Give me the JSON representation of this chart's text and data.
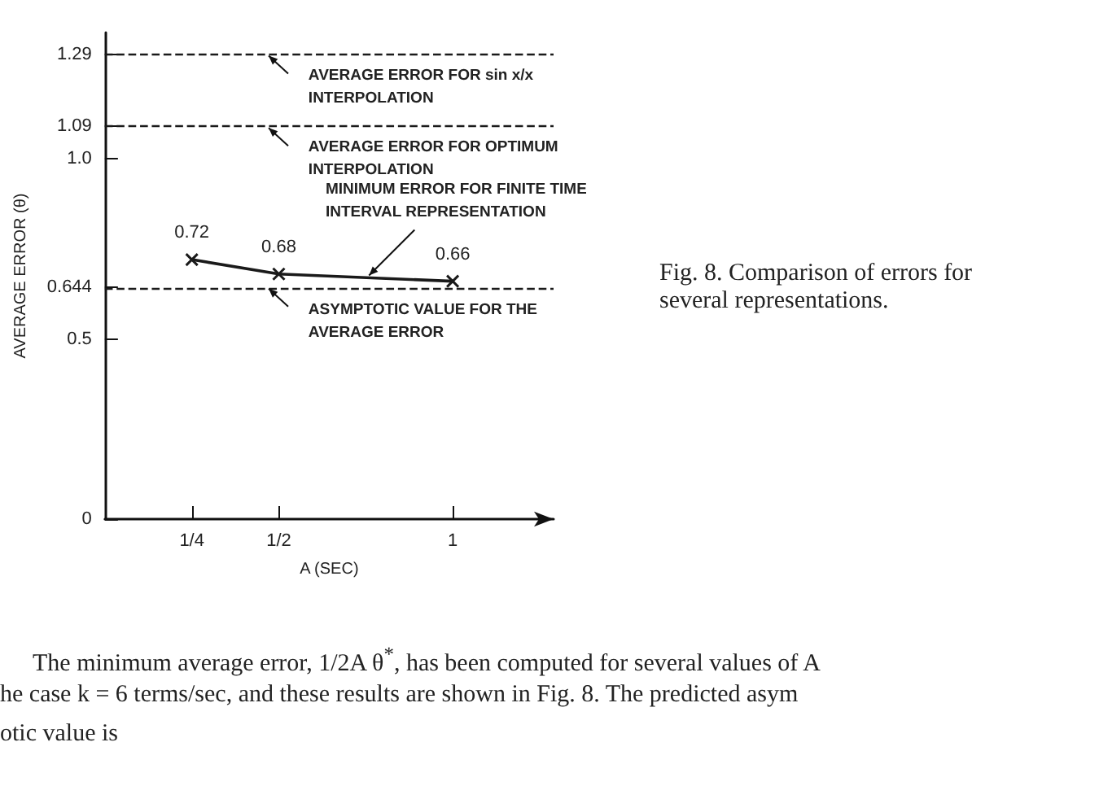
{
  "chart_data": {
    "type": "line",
    "xlabel": "A (SEC)",
    "ylabel": "AVERAGE ERROR (θ)",
    "x": [
      0.25,
      0.5,
      1
    ],
    "series": [
      {
        "color": "#1a1a1a",
        "values": [
          0.72,
          0.68,
          0.66
        ]
      }
    ],
    "data_labels": true,
    "marker": "cross",
    "line_style": "solid",
    "grid": false,
    "xlim": [
      0,
      1.29
    ],
    "xticks": [
      {
        "value": 0.25,
        "label": "1/4"
      },
      {
        "value": 0.5,
        "label": "1/2"
      },
      1
    ],
    "ylim": [
      0,
      1.35
    ],
    "yticks": [
      0,
      0.5,
      0.644,
      {
        "value": 1,
        "label": "1.0"
      },
      1.09,
      1.29
    ],
    "ref_lines": [
      {
        "axis": "y",
        "value": 1.29,
        "label": "AVERAGE ERROR FOR sin x/x INTERPOLATION",
        "line_style": "dashed",
        "color": "#1a1a1a"
      },
      {
        "axis": "y",
        "value": 1.09,
        "label": "AVERAGE ERROR FOR OPTIMUM INTERPOLATION",
        "line_style": "dashed",
        "color": "#1a1a1a"
      },
      {
        "axis": "y",
        "value": 0.644,
        "label": "ASYMPTOTIC VALUE FOR THE AVERAGE ERROR",
        "line_style": "dashed",
        "color": "#1a1a1a"
      }
    ],
    "annotations": [
      {
        "text": "MINIMUM ERROR FOR FINITE TIME INTERVAL REPRESENTATION",
        "x": 0.75,
        "y": 0.667
      },
      "Fig. 8. Comparison of errors for several representations.",
      "The minimum average error, 1/2A θ$^{*}$, has been computed for several values of A",
      "he case k = 6 terms/sec, and these results are shown in Fig. 8. The predicted asym",
      "otic value is"
    ]
  }
}
